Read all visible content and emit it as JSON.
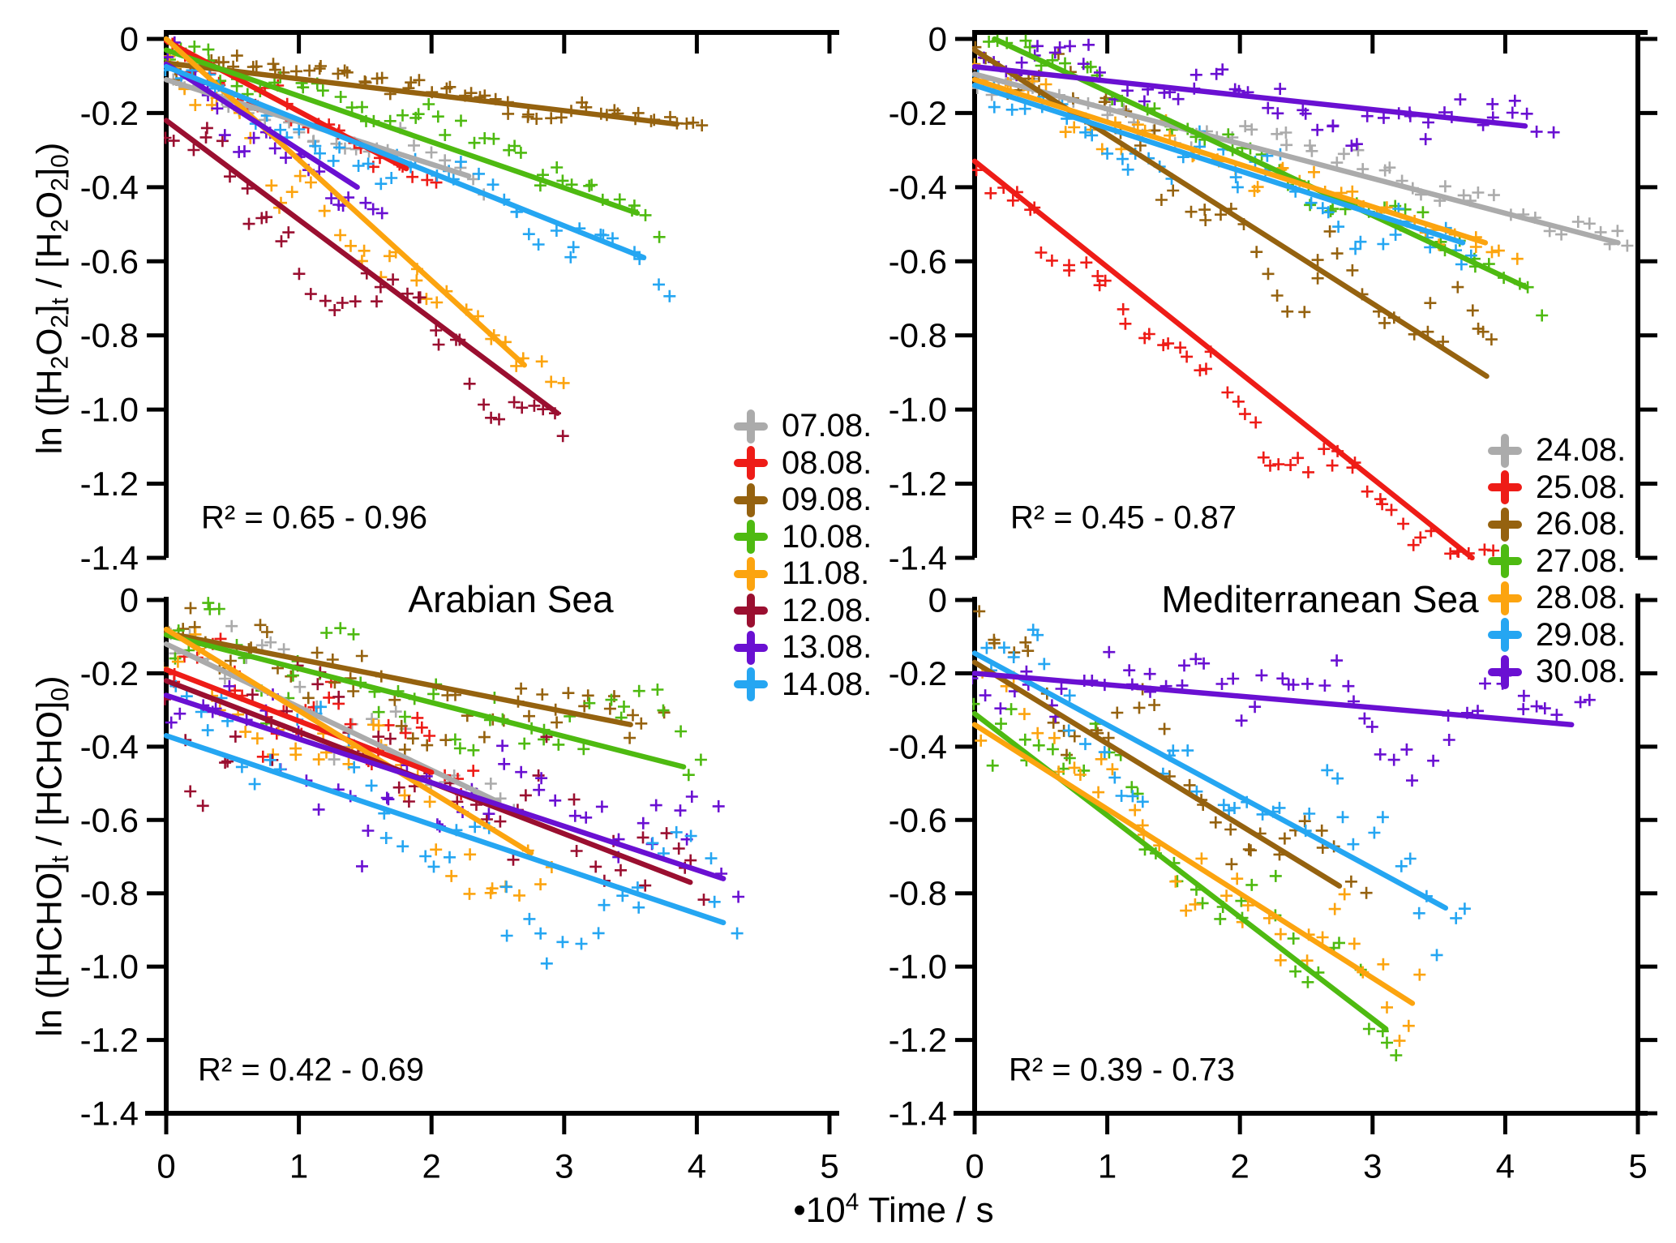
{
  "titles": {
    "left": "Arabian Sea",
    "right": "Mediterranean Sea"
  },
  "x_axis": {
    "range": [
      0,
      5
    ],
    "tick_labels": [
      "0",
      "1",
      "2",
      "3",
      "4",
      "5"
    ],
    "label_tokens": [
      {
        "t": "•10"
      },
      {
        "sup": "4"
      },
      {
        "t": " Time / s"
      }
    ]
  },
  "y_axis": {
    "range": [
      0,
      -1.4
    ],
    "tick_labels": [
      "0",
      "-0.2",
      "-0.4",
      "-0.6",
      "-0.8",
      "-1.0",
      "-1.2",
      "-1.4"
    ],
    "top_label_tokens": [
      {
        "t": "ln ([H"
      },
      {
        "sub": "2"
      },
      {
        "t": "O"
      },
      {
        "sub": "2"
      },
      {
        "t": "]"
      },
      {
        "sub": "t"
      },
      {
        "t": " / [H"
      },
      {
        "sub": "2"
      },
      {
        "t": "O"
      },
      {
        "sub": "2"
      },
      {
        "t": "]"
      },
      {
        "sub": "0"
      },
      {
        "t": ")"
      }
    ],
    "bottom_label_tokens": [
      {
        "t": "ln ([HCHO]"
      },
      {
        "sub": "t"
      },
      {
        "t": " / [HCHO]"
      },
      {
        "sub": "0"
      },
      {
        "t": ")"
      }
    ]
  },
  "legends": {
    "left": [
      {
        "label": "07.08.",
        "color": "#ababab"
      },
      {
        "label": "08.08.",
        "color": "#ee1c17"
      },
      {
        "label": "09.08.",
        "color": "#95620f"
      },
      {
        "label": "10.08.",
        "color": "#4eba11"
      },
      {
        "label": "11.08.",
        "color": "#fca40f"
      },
      {
        "label": "12.08.",
        "color": "#9a0f30"
      },
      {
        "label": "13.08.",
        "color": "#6a10d2"
      },
      {
        "label": "14.08.",
        "color": "#25a6f2"
      }
    ],
    "right": [
      {
        "label": "24.08.",
        "color": "#ababab"
      },
      {
        "label": "25.08.",
        "color": "#ee1c17"
      },
      {
        "label": "26.08.",
        "color": "#95620f"
      },
      {
        "label": "27.08.",
        "color": "#4eba11"
      },
      {
        "label": "28.08.",
        "color": "#fca40f"
      },
      {
        "label": "29.08.",
        "color": "#25a6f2"
      },
      {
        "label": "30.08.",
        "color": "#6a10d2"
      }
    ]
  },
  "chart_data": [
    {
      "type": "scatter",
      "panel": "top-left",
      "quantity": "ln([H2O2]t / [H2O2]0)",
      "location": "Arabian Sea",
      "r2_text": "R² = 0.65 - 0.96",
      "r2_range": [
        0.65,
        0.96
      ],
      "x_unit": "1e4 s",
      "xlim": [
        0,
        5
      ],
      "ylim": [
        -1.4,
        0
      ],
      "series": [
        {
          "date": "07.08.",
          "color": "#ababab",
          "fit_line": {
            "x": [
              0,
              2.28
            ],
            "y": [
              -0.11,
              -0.37
            ]
          },
          "scatter": {
            "n": 26,
            "xmax": 2.35,
            "sigma": 0.03,
            "bow": 0.02
          }
        },
        {
          "date": "08.08.",
          "color": "#ee1c17",
          "fit_line": {
            "x": [
              0,
              1.81
            ],
            "y": [
              -0.005,
              -0.35
            ]
          },
          "scatter": {
            "n": 30,
            "xmax": 2.0,
            "sigma": 0.03,
            "bow": 0.02
          }
        },
        {
          "date": "09.08.",
          "color": "#95620f",
          "fit_line": {
            "x": [
              0,
              3.85
            ],
            "y": [
              -0.065,
              -0.23
            ]
          },
          "scatter": {
            "n": 60,
            "xmax": 4.05,
            "sigma": 0.022,
            "bow": 0.0
          }
        },
        {
          "date": "10.08.",
          "color": "#4eba11",
          "fit_line": {
            "x": [
              0,
              3.55
            ],
            "y": [
              -0.03,
              -0.47
            ]
          },
          "scatter": {
            "n": 48,
            "xmax": 3.72,
            "sigma": 0.035,
            "bow": 0.0
          }
        },
        {
          "date": "11.08.",
          "color": "#fca40f",
          "fit_line": {
            "x": [
              0,
              2.7
            ],
            "y": [
              0.0,
              -0.88
            ]
          },
          "scatter": {
            "n": 38,
            "xmax": 2.95,
            "sigma": 0.045,
            "bow": 0.05
          }
        },
        {
          "date": "12.08.",
          "color": "#9a0f30",
          "fit_line": {
            "x": [
              0,
              2.95
            ],
            "y": [
              -0.22,
              -1.01
            ]
          },
          "scatter": {
            "n": 40,
            "xmax": 3.0,
            "sigma": 0.055,
            "bow": 0.09
          }
        },
        {
          "date": "13.08.",
          "color": "#6a10d2",
          "fit_line": {
            "x": [
              0,
              1.44
            ],
            "y": [
              -0.068,
              -0.4
            ]
          },
          "scatter": {
            "n": 26,
            "xmax": 1.6,
            "sigma": 0.04,
            "bow": 0.03
          }
        },
        {
          "date": "14.08.",
          "color": "#25a6f2",
          "fit_line": {
            "x": [
              0,
              3.6
            ],
            "y": [
              -0.075,
              -0.59
            ]
          },
          "scatter": {
            "n": 46,
            "xmax": 3.75,
            "sigma": 0.045,
            "bow": 0.02
          }
        }
      ]
    },
    {
      "type": "scatter",
      "panel": "top-right",
      "quantity": "ln([H2O2]t / [H2O2]0)",
      "location": "Mediterranean Sea",
      "r2_text": "R² = 0.45 - 0.87",
      "r2_range": [
        0.45,
        0.87
      ],
      "x_unit": "1e4 s",
      "xlim": [
        0,
        5
      ],
      "ylim": [
        -1.4,
        0
      ],
      "series": [
        {
          "date": "24.08.",
          "color": "#ababab",
          "fit_line": {
            "x": [
              0,
              4.85
            ],
            "y": [
              -0.095,
              -0.55
            ]
          },
          "scatter": {
            "n": 55,
            "xmax": 4.95,
            "sigma": 0.035,
            "bow": 0.0
          }
        },
        {
          "date": "25.08.",
          "color": "#ee1c17",
          "fit_line": {
            "x": [
              0,
              3.75
            ],
            "y": [
              -0.33,
              -1.4
            ]
          },
          "scatter": {
            "n": 55,
            "xmax": 3.9,
            "sigma": 0.05,
            "bow": 0.07
          }
        },
        {
          "date": "26.08.",
          "color": "#95620f",
          "fit_line": {
            "x": [
              0,
              3.86
            ],
            "y": [
              -0.03,
              -0.91
            ]
          },
          "scatter": {
            "n": 48,
            "xmax": 3.95,
            "sigma": 0.07,
            "bow": 0.08
          }
        },
        {
          "date": "27.08.",
          "color": "#4eba11",
          "fit_line": {
            "x": [
              0.15,
              4.16
            ],
            "y": [
              0.0,
              -0.67
            ]
          },
          "scatter": {
            "n": 48,
            "xmin": 0.1,
            "xmax": 4.25,
            "sigma": 0.045,
            "bow": 0.0
          }
        },
        {
          "date": "28.08.",
          "color": "#fca40f",
          "fit_line": {
            "x": [
              0,
              3.85
            ],
            "y": [
              -0.11,
              -0.55
            ]
          },
          "scatter": {
            "n": 45,
            "xmax": 4.1,
            "sigma": 0.045,
            "bow": 0.0
          }
        },
        {
          "date": "29.08.",
          "color": "#25a6f2",
          "fit_line": {
            "x": [
              0,
              3.68
            ],
            "y": [
              -0.125,
              -0.55
            ]
          },
          "scatter": {
            "n": 45,
            "xmax": 3.8,
            "sigma": 0.05,
            "bow": 0.02
          }
        },
        {
          "date": "30.08.",
          "color": "#6a10d2",
          "fit_line": {
            "x": [
              0,
              4.15
            ],
            "y": [
              -0.075,
              -0.235
            ]
          },
          "scatter": {
            "n": 55,
            "xmax": 4.35,
            "sigma": 0.045,
            "bow": -0.03
          }
        }
      ]
    },
    {
      "type": "scatter",
      "panel": "bottom-left",
      "quantity": "ln([HCHO]t / [HCHO]0)",
      "location": "Arabian Sea",
      "r2_text": "R² = 0.42 - 0.69",
      "r2_range": [
        0.42,
        0.69
      ],
      "x_unit": "1e4 s",
      "xlim": [
        0,
        5
      ],
      "ylim": [
        -1.4,
        0
      ],
      "series": [
        {
          "date": "07.08.",
          "color": "#ababab",
          "fit_line": {
            "x": [
              0,
              2.5
            ],
            "y": [
              -0.12,
              -0.55
            ]
          },
          "scatter": {
            "n": 26,
            "xmax": 2.6,
            "sigma": 0.07,
            "bow": 0.0
          }
        },
        {
          "date": "08.08.",
          "color": "#ee1c17",
          "fit_line": {
            "x": [
              0,
              2.0
            ],
            "y": [
              -0.19,
              -0.47
            ]
          },
          "scatter": {
            "n": 32,
            "xmax": 2.3,
            "sigma": 0.08,
            "bow": 0.0
          }
        },
        {
          "date": "09.08.",
          "color": "#95620f",
          "fit_line": {
            "x": [
              0,
              3.5
            ],
            "y": [
              -0.09,
              -0.34
            ]
          },
          "scatter": {
            "n": 48,
            "xmax": 3.7,
            "sigma": 0.08,
            "bow": 0.0
          }
        },
        {
          "date": "10.08.",
          "color": "#4eba11",
          "fit_line": {
            "x": [
              0,
              3.9
            ],
            "y": [
              -0.095,
              -0.455
            ]
          },
          "scatter": {
            "n": 48,
            "xmax": 4.0,
            "sigma": 0.08,
            "bow": 0.0
          }
        },
        {
          "date": "11.08.",
          "color": "#fca40f",
          "fit_line": {
            "x": [
              0,
              2.75
            ],
            "y": [
              -0.08,
              -0.69
            ]
          },
          "scatter": {
            "n": 36,
            "xmax": 2.9,
            "sigma": 0.09,
            "bow": 0.04
          }
        },
        {
          "date": "12.08.",
          "color": "#9a0f30",
          "fit_line": {
            "x": [
              0,
              3.95
            ],
            "y": [
              -0.22,
              -0.77
            ]
          },
          "scatter": {
            "n": 46,
            "xmax": 4.1,
            "sigma": 0.09,
            "bow": 0.0
          }
        },
        {
          "date": "13.08.",
          "color": "#6a10d2",
          "fit_line": {
            "x": [
              0,
              4.2
            ],
            "y": [
              -0.26,
              -0.76
            ]
          },
          "scatter": {
            "n": 46,
            "xmax": 4.3,
            "sigma": 0.1,
            "bow": 0.0
          }
        },
        {
          "date": "14.08.",
          "color": "#25a6f2",
          "fit_line": {
            "x": [
              0,
              4.2
            ],
            "y": [
              -0.37,
              -0.88
            ]
          },
          "scatter": {
            "n": 44,
            "xmax": 4.3,
            "sigma": 0.1,
            "bow": 0.0
          }
        }
      ]
    },
    {
      "type": "scatter",
      "panel": "bottom-right",
      "quantity": "ln([HCHO]t / [HCHO]0)",
      "location": "Mediterranean Sea",
      "r2_text": "R² = 0.39 - 0.73",
      "r2_range": [
        0.39,
        0.73
      ],
      "x_unit": "1e4 s",
      "xlim": [
        0,
        5
      ],
      "ylim": [
        -1.4,
        0
      ],
      "series": [
        {
          "date": "26.08.",
          "color": "#95620f",
          "fit_line": {
            "x": [
              0,
              2.75
            ],
            "y": [
              -0.17,
              -0.78
            ]
          },
          "scatter": {
            "n": 38,
            "xmax": 2.9,
            "sigma": 0.08,
            "bow": 0.0
          }
        },
        {
          "date": "27.08.",
          "color": "#4eba11",
          "fit_line": {
            "x": [
              0,
              3.1
            ],
            "y": [
              -0.31,
              -1.17
            ]
          },
          "scatter": {
            "n": 40,
            "xmax": 3.2,
            "sigma": 0.1,
            "bow": -0.02
          }
        },
        {
          "date": "28.08.",
          "color": "#fca40f",
          "fit_line": {
            "x": [
              0,
              3.3
            ],
            "y": [
              -0.34,
              -1.1
            ]
          },
          "scatter": {
            "n": 40,
            "xmax": 3.4,
            "sigma": 0.1,
            "bow": 0.0
          }
        },
        {
          "date": "29.08.",
          "color": "#25a6f2",
          "fit_line": {
            "x": [
              0,
              3.55
            ],
            "y": [
              -0.145,
              -0.84
            ]
          },
          "scatter": {
            "n": 42,
            "xmax": 3.7,
            "sigma": 0.09,
            "bow": 0.0
          }
        },
        {
          "date": "30.08.",
          "color": "#6a10d2",
          "fit_line": {
            "x": [
              0,
              4.5
            ],
            "y": [
              -0.2,
              -0.34
            ]
          },
          "scatter": {
            "n": 56,
            "xmax": 4.6,
            "sigma": 0.07,
            "bow": -0.03
          }
        }
      ]
    }
  ]
}
